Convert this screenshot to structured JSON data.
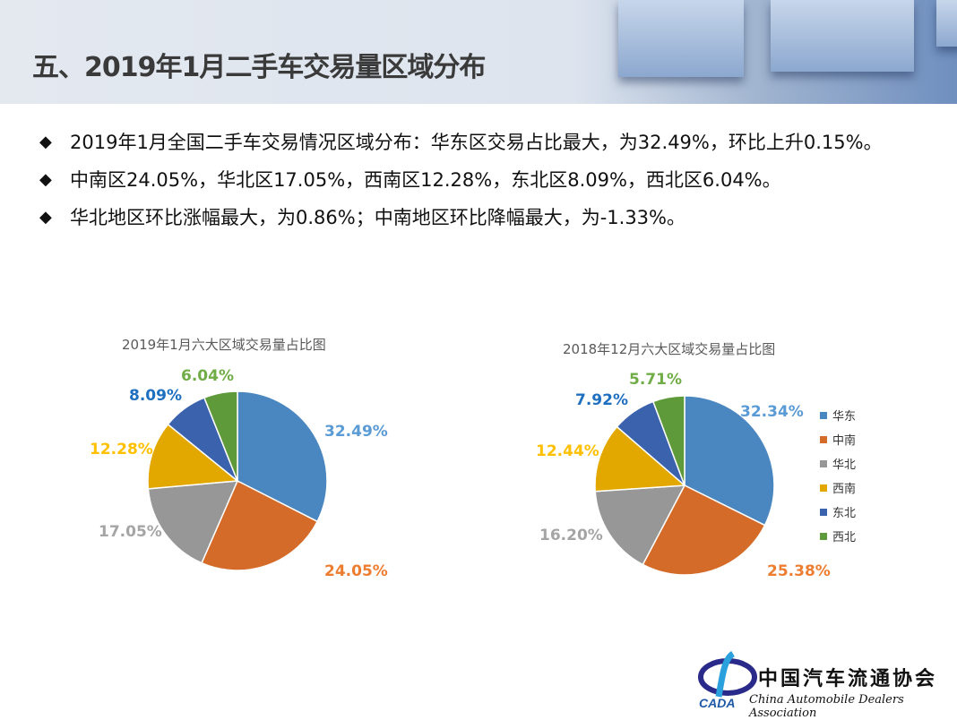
{
  "title": "五、2019年1月二手车交易量区域分布",
  "bullets": [
    "2019年1月全国二手车交易情况区域分布：华东区交易占比最大，为32.49%，环比上升0.15%。",
    "中南区24.05%，华北区17.05%，西南区12.28%，东北区8.09%，西北区6.04%。",
    "华北地区环比涨幅最大，为0.86%；中南地区环比降幅最大，为-1.33%。"
  ],
  "bullet_icon": "diamond-icon",
  "chart_data": [
    {
      "type": "pie",
      "title": "2019年1月六大区域交易量占比图",
      "categories": [
        "华东",
        "中南",
        "华北",
        "西南",
        "东北",
        "西北"
      ],
      "values": [
        32.49,
        24.05,
        17.05,
        12.28,
        8.09,
        6.04
      ],
      "labels": [
        "32.49%",
        "24.05%",
        "17.05%",
        "12.28%",
        "8.09%",
        "6.04%"
      ]
    },
    {
      "type": "pie",
      "title": "2018年12月六大区域交易量占比图",
      "categories": [
        "华东",
        "中南",
        "华北",
        "西南",
        "东北",
        "西北"
      ],
      "values": [
        32.34,
        25.38,
        16.2,
        12.44,
        7.92,
        5.71
      ],
      "labels": [
        "32.34%",
        "25.38%",
        "16.20%",
        "12.44%",
        "7.92%",
        "5.71%"
      ],
      "legend": "right"
    }
  ],
  "colors": {
    "slices": [
      "#4a86c0",
      "#d46b28",
      "#979797",
      "#e3a800",
      "#3b62ad",
      "#5f9a3a"
    ],
    "labels": [
      "#5b9bd5",
      "#ed7d31",
      "#a5a5a5",
      "#ffc000",
      "#1f6fc0",
      "#70ad47"
    ]
  },
  "logo": {
    "cn": "中国汽车流通协会",
    "en": "China Automobile Dealers Association",
    "mark": "CADA"
  }
}
